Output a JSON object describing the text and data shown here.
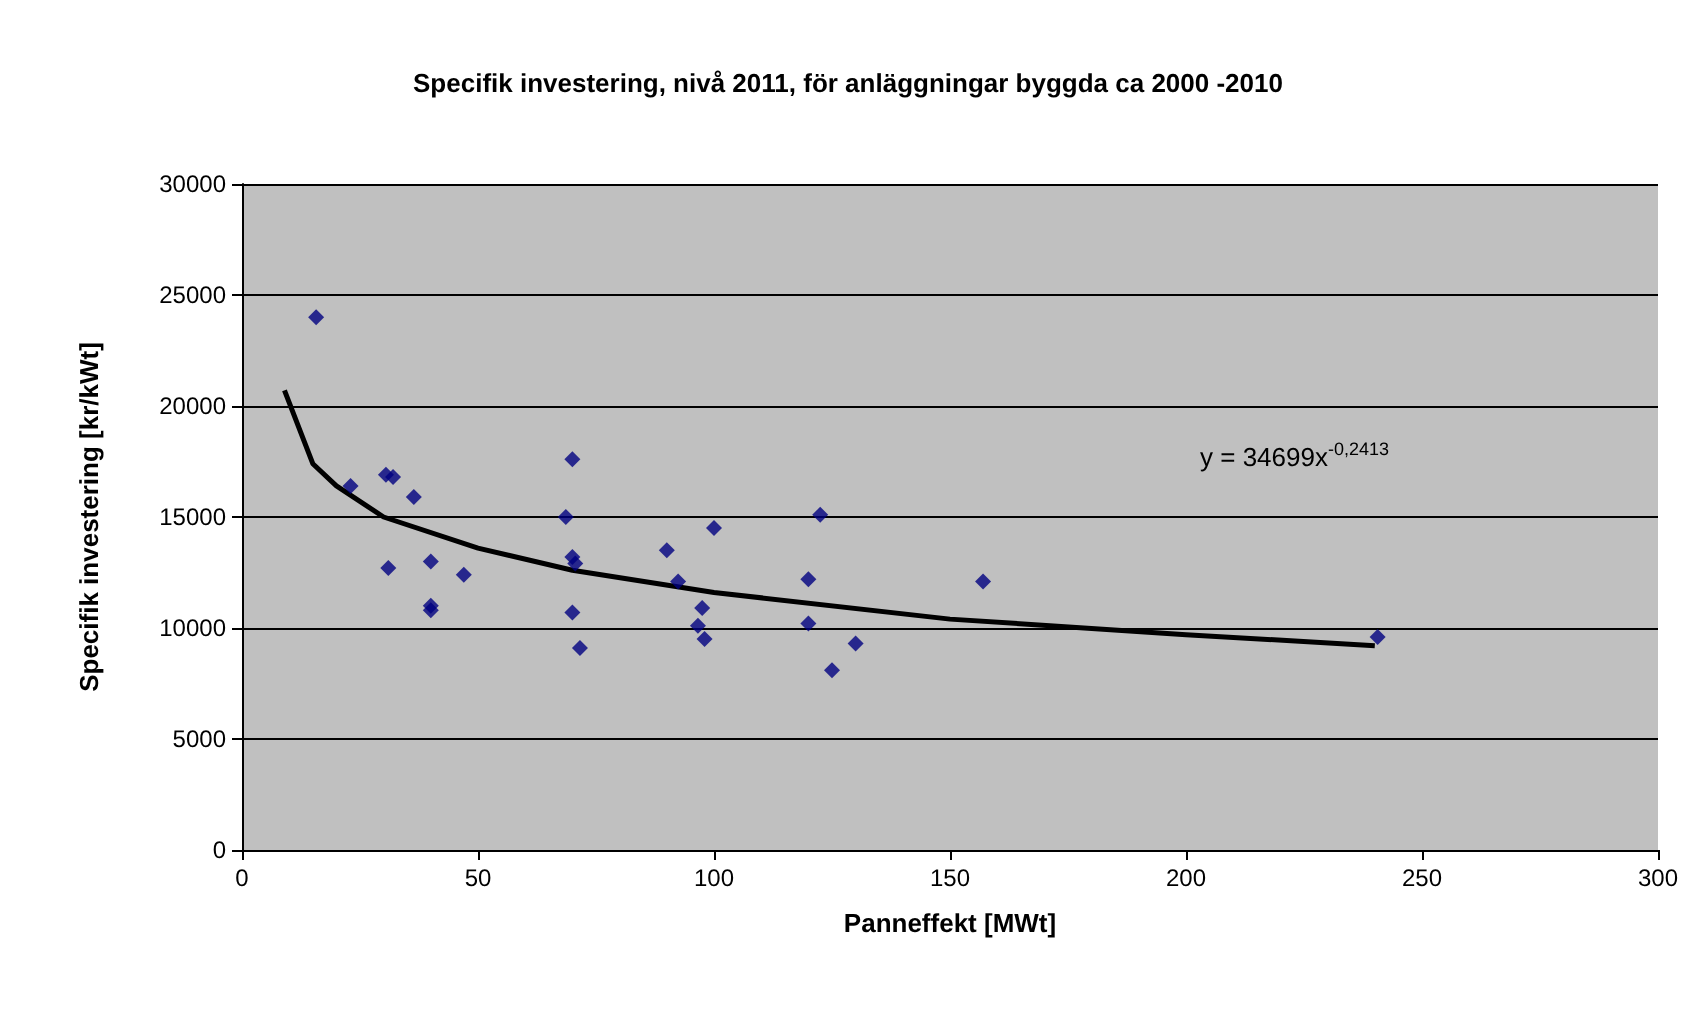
{
  "chart_data": {
    "type": "scatter",
    "title": "Specifik investering, nivå 2011, för anläggningar byggda ca 2000 -2010",
    "xlabel": "Panneffekt [MWt]",
    "ylabel": "Specifik investering [kr/kWt]",
    "xlim": [
      0,
      300
    ],
    "xticks": [
      0,
      50,
      100,
      150,
      200,
      250,
      300
    ],
    "ylim": [
      0,
      30000
    ],
    "yticks": [
      0,
      5000,
      10000,
      15000,
      20000,
      25000,
      30000
    ],
    "grid": "y",
    "marker": "diamond",
    "annotations": [
      "y = 34699x$^{-0,2413}$"
    ],
    "series": [
      {
        "color": "#000080",
        "x": [
          15.7,
          23,
          30.5,
          32,
          36.4,
          31,
          40,
          40,
          40,
          47,
          68.6,
          70,
          70,
          70.6,
          70,
          71.6,
          90,
          92.4,
          96.6,
          97.5,
          98,
          100,
          120,
          120,
          122.5,
          125,
          130,
          157,
          240.6
        ],
        "values": [
          24000,
          16400,
          16900,
          16800,
          15900,
          12700,
          13000,
          11000,
          10800,
          12400,
          15000,
          17600,
          13200,
          12900,
          10700,
          9100,
          13500,
          12100,
          10100,
          10900,
          9500,
          14500,
          12200,
          10200,
          15100,
          8100,
          9300,
          12100,
          9600
        ]
      },
      {
        "type": "line",
        "color": "#000000",
        "marker": "none",
        "x": [
          9,
          15,
          20,
          30,
          50,
          70,
          100,
          150,
          200,
          240
        ],
        "values": [
          20700,
          17400,
          16400,
          15000,
          13600,
          12600,
          11600,
          10400,
          9700,
          9200
        ]
      }
    ]
  }
}
